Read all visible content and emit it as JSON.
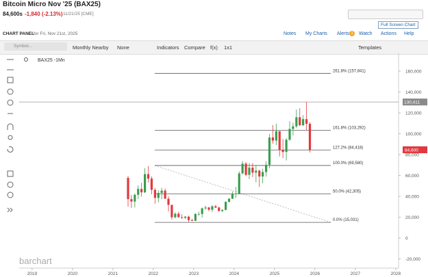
{
  "header": {
    "title": "Bitcoin Micro Nov '25 (BAX25)",
    "price": "84,600s",
    "change": "-1,840 (-2.13%)",
    "date": "11/21/25 [CME]",
    "full_screen": "Full Screen Chart"
  },
  "panel": {
    "label": "CHART PANEL",
    "date": "for Fri, Nov 21st, 2025",
    "links": [
      "Notes",
      "My Charts",
      "Alerts",
      "Watch",
      "Actions",
      "Help"
    ],
    "alerts_count": "1"
  },
  "toolbar": {
    "symbol_placeholder": "Symbol...",
    "items": [
      "Monthly Nearby",
      "None",
      "Indicators",
      "Compare",
      "f(x)",
      "1x1"
    ],
    "templates": "Templates"
  },
  "chart_data": {
    "type": "candlestick",
    "legend": "BAX25 -1Mn",
    "watermark": "barchart",
    "up_color": "#3a9d4f",
    "down_color": "#e0393e",
    "x": [
      2021.375,
      2021.458,
      2021.542,
      2021.625,
      2021.708,
      2021.792,
      2021.875,
      2021.958,
      2022.042,
      2022.125,
      2022.208,
      2022.292,
      2022.375,
      2022.458,
      2022.542,
      2022.625,
      2022.708,
      2022.792,
      2022.875,
      2022.958,
      2023.042,
      2023.125,
      2023.208,
      2023.292,
      2023.375,
      2023.458,
      2023.542,
      2023.625,
      2023.708,
      2023.792,
      2023.875,
      2023.958,
      2024.042,
      2024.125,
      2024.208,
      2024.292,
      2024.375,
      2024.458,
      2024.542,
      2024.625,
      2024.708,
      2024.792,
      2024.875,
      2024.958,
      2025.042,
      2025.125,
      2025.208,
      2025.292,
      2025.375,
      2025.458,
      2025.542,
      2025.625,
      2025.708,
      2025.792,
      2025.875
    ],
    "open": [
      57700,
      37300,
      35000,
      41500,
      47100,
      43800,
      61300,
      57000,
      46200,
      38500,
      43200,
      45500,
      37700,
      31800,
      19900,
      23300,
      20000,
      19400,
      20500,
      17200,
      16500,
      23100,
      23100,
      28500,
      29300,
      27200,
      30500,
      29200,
      26000,
      27000,
      34700,
      37700,
      42300,
      42600,
      62000,
      71300,
      60600,
      67500,
      62700,
      64600,
      59000,
      63300,
      70200,
      96400,
      93400,
      102400,
      84400,
      82500,
      94200,
      104600,
      107100,
      115800,
      108200,
      114000,
      109500
    ],
    "high": [
      59500,
      41300,
      42600,
      50500,
      52900,
      67000,
      69000,
      59100,
      48000,
      45800,
      48200,
      47400,
      40000,
      31900,
      24700,
      25200,
      22800,
      21100,
      21500,
      18400,
      23900,
      25300,
      29200,
      31000,
      29900,
      31400,
      31800,
      30200,
      27500,
      35300,
      38400,
      44700,
      49000,
      64000,
      73800,
      72800,
      72000,
      71900,
      70000,
      65600,
      66500,
      73600,
      99800,
      108300,
      109600,
      102500,
      95000,
      95700,
      112000,
      110500,
      123200,
      124500,
      117900,
      130411,
      111000
    ],
    "low": [
      30000,
      28800,
      29300,
      37300,
      39600,
      43300,
      53300,
      42000,
      32900,
      34300,
      37200,
      37600,
      25400,
      17600,
      18800,
      19500,
      18200,
      18200,
      15500,
      16300,
      16500,
      21400,
      19600,
      27000,
      25800,
      24800,
      28900,
      25300,
      24900,
      26600,
      34100,
      37600,
      38500,
      41900,
      60800,
      59200,
      56500,
      58400,
      53500,
      49000,
      52500,
      58900,
      66800,
      90500,
      89200,
      78200,
      76600,
      74400,
      93400,
      98200,
      105300,
      107300,
      107300,
      103500,
      82000
    ],
    "close": [
      37300,
      35000,
      41500,
      47100,
      43800,
      61300,
      57000,
      46200,
      38500,
      43200,
      45500,
      37700,
      31800,
      19900,
      23300,
      20000,
      19400,
      20500,
      17200,
      16500,
      23100,
      23100,
      28500,
      29300,
      27200,
      30500,
      29200,
      26000,
      27000,
      34700,
      37700,
      42300,
      42600,
      62000,
      71300,
      60600,
      67500,
      62700,
      64600,
      59000,
      63300,
      70200,
      96400,
      93400,
      102400,
      84400,
      82500,
      94200,
      104600,
      107100,
      115800,
      108200,
      114000,
      109500,
      84600
    ],
    "xlim": [
      2018.68,
      2028.07
    ],
    "xticks": [
      2019,
      2020,
      2021,
      2022,
      2023,
      2024,
      2025,
      2026,
      2027,
      2028
    ],
    "ylim": [
      -27500,
      177700
    ],
    "yticks": [
      {
        "value": -20000,
        "label": "-20,000"
      },
      0,
      {
        "value": 20000,
        "label": "20,000"
      },
      {
        "value": 40000,
        "label": "40,000"
      },
      {
        "value": 60000,
        "label": "60,000"
      },
      {
        "value": 80000,
        "label": "80,000"
      },
      {
        "value": 100000,
        "label": "100,000"
      },
      {
        "value": 120000,
        "label": "120,000"
      },
      {
        "value": 140000,
        "label": "140,000"
      },
      {
        "value": 160000,
        "label": "160,000"
      }
    ],
    "fib_levels": [
      {
        "value": 157841,
        "label": "261.8% (157,841)"
      },
      {
        "value": 103292,
        "label": "161.8% (103,292)"
      },
      {
        "value": 84418,
        "label": "127.2% (84,418)"
      },
      {
        "value": 69580,
        "label": "100.0% (69,580)"
      },
      {
        "value": 42305,
        "label": "50.0% (42,305)"
      },
      {
        "value": 15031,
        "label": "0.0% (15,031)"
      }
    ],
    "high_price": {
      "value": 130411,
      "label": "130,411"
    },
    "last_price": {
      "value": 84600,
      "label": "84,600"
    }
  }
}
